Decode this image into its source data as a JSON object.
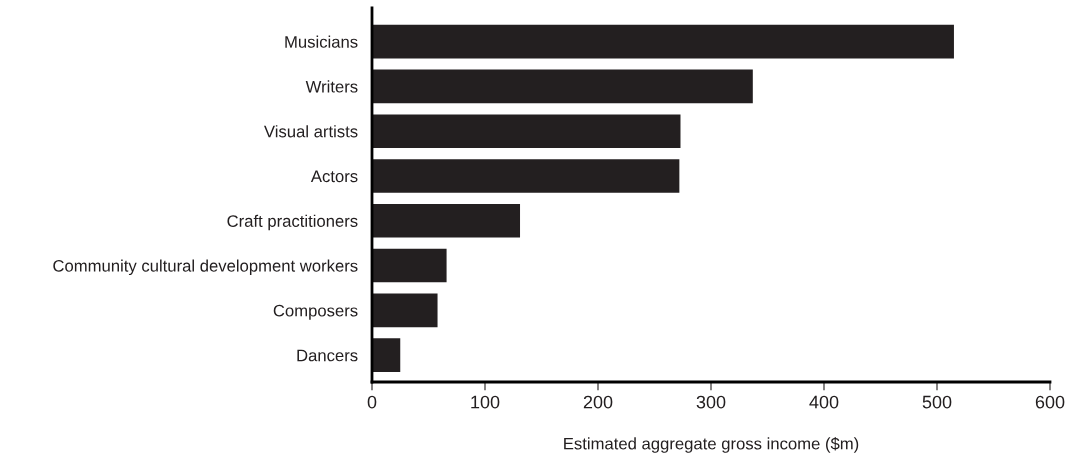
{
  "chart_data": {
    "type": "bar",
    "orientation": "horizontal",
    "xlabel": "Estimated aggregate gross income ($m)",
    "categories": [
      "Musicians",
      "Writers",
      "Visual artists",
      "Actors",
      "Craft practitioners",
      "Community cultural development workers",
      "Composers",
      "Dancers"
    ],
    "values": [
      515,
      337,
      273,
      272,
      131,
      66,
      58,
      25
    ],
    "color": "#231f20",
    "xlim": [
      0,
      600
    ],
    "xticks": [
      0,
      100,
      200,
      300,
      400,
      500,
      600
    ],
    "grid": false,
    "legend": false
  }
}
